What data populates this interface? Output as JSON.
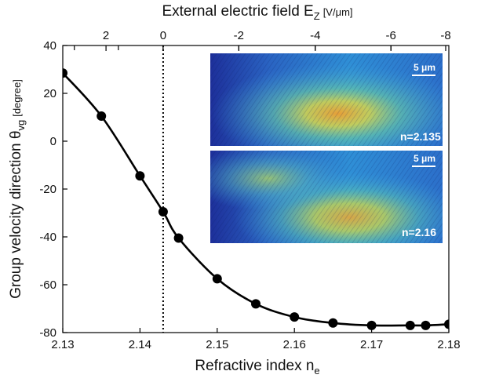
{
  "chart_data": {
    "type": "line",
    "x_axis": {
      "label_main": "Refractive index n",
      "label_sub": "e",
      "range": [
        2.13,
        2.18
      ],
      "ticks": [
        2.13,
        2.14,
        2.15,
        2.16,
        2.17,
        2.18
      ],
      "tick_labels": [
        "2.13",
        "2.14",
        "2.15",
        "2.16",
        "2.17",
        "2.18"
      ]
    },
    "x_top_axis": {
      "label_main": "External electric field E",
      "label_sub": "Z",
      "label_unit": "[V/μm]",
      "ticks_at_x": [
        2.1315,
        2.1372,
        2.143,
        2.1528,
        2.1627,
        2.1725,
        2.1823
      ],
      "tick_labels": [
        "2",
        "",
        "0",
        "-2",
        "-4",
        "-6",
        "-8"
      ],
      "labeled_ticks": [
        {
          "x": 2.1356,
          "label": "2"
        },
        {
          "x": 2.143,
          "label": "0"
        },
        {
          "x": 2.1528,
          "label": "-2"
        },
        {
          "x": 2.1627,
          "label": "-4"
        },
        {
          "x": 2.1725,
          "label": "-6"
        },
        {
          "x": 2.1823,
          "label": "-8"
        }
      ]
    },
    "y_axis": {
      "label_main": "Group velocity direction θ",
      "label_sub": "vg",
      "label_unit": "[degree]",
      "range": [
        -80,
        40
      ],
      "ticks": [
        -80,
        -60,
        -40,
        -20,
        0,
        20,
        40
      ],
      "tick_labels": [
        "-80",
        "-60",
        "-40",
        "-20",
        "0",
        "20",
        "40"
      ]
    },
    "reference_line": {
      "x": 2.143,
      "style": "dotted"
    },
    "series": [
      {
        "color": "#000000",
        "x": [
          2.13,
          2.135,
          2.14,
          2.143,
          2.145,
          2.15,
          2.155,
          2.16,
          2.165,
          2.17,
          2.175,
          2.177,
          2.18
        ],
        "y": [
          28.5,
          10.5,
          -14.5,
          -29.5,
          -40.5,
          -57.5,
          -68,
          -73.5,
          -76,
          -77,
          -77,
          -77,
          -76.5
        ]
      }
    ],
    "insets": [
      {
        "label": "n=2.135",
        "scalebar": "5 μm"
      },
      {
        "label": "n=2.16",
        "scalebar": "5 μm"
      }
    ],
    "grid": false
  }
}
